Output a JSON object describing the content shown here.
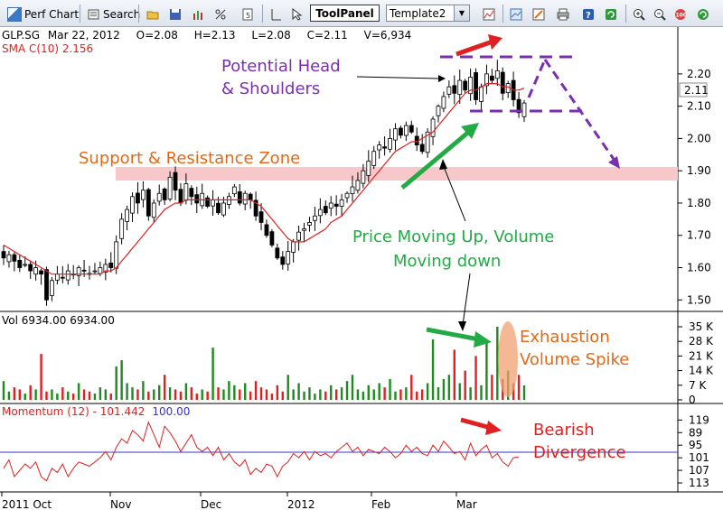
{
  "toolbar": {
    "perf_chart_label": "Perf Chart",
    "search_label": "Search",
    "toolpanel_label": "ToolPanel",
    "template_value": "Template2"
  },
  "header": {
    "symbol": "GLP.SG",
    "date": "Mar 22, 2012",
    "open": "O=2.08",
    "high": "H=2.13",
    "low": "L=2.08",
    "close": "C=2.11",
    "volume": "V=6,934",
    "sma_label": "SMA C(10) 2.156"
  },
  "price_panel": {
    "ticks": [
      "2.20",
      "2.10",
      "2.00",
      "1.90",
      "1.80",
      "1.70",
      "1.60",
      "1.50"
    ],
    "last_price": "2.11",
    "annotations": {
      "head_shoulders_1": "Potential Head",
      "head_shoulders_2": "& Shoulders",
      "support": "Support & Resistance Zone",
      "price_vol_1": "Price Moving Up, Volume",
      "price_vol_2": "Moving down"
    }
  },
  "volume_panel": {
    "label": "Vol  6934.00  6934.00",
    "ticks": [
      "35 K",
      "28 K",
      "21 K",
      "14 K",
      "7 K",
      "0"
    ],
    "annotation_1": "Exhaustion",
    "annotation_2": "Volume Spike"
  },
  "momentum_panel": {
    "label_prefix": "Momentum (12)  -  101.442",
    "label_ref": "100.00",
    "ticks": [
      "113",
      "107",
      "101",
      "95",
      "89",
      "119"
    ],
    "annotation_1": "Bearish",
    "annotation_2": "Divergence"
  },
  "x_axis": [
    "2011 Oct",
    "Nov",
    "Dec",
    "2012",
    "Feb",
    "Mar"
  ],
  "colors": {
    "up": "#1f8a1f",
    "down": "#e02020",
    "candle": "#000000",
    "sma": "#e02020",
    "support_zone": "#f7c7c9",
    "purple": "#7a2fb0",
    "orange": "#e06a1a",
    "green_arrow": "#22aa44",
    "red_arrow": "#e02020",
    "momentum": "#e02020",
    "ref_line": "#3333cc"
  },
  "chart_data": [
    {
      "type": "candlestick",
      "title": "GLP.SG Mar 22, 2012",
      "ylim": [
        1.47,
        2.25
      ],
      "y_ticks": [
        1.5,
        1.6,
        1.7,
        1.8,
        1.9,
        2.0,
        2.1,
        2.2
      ],
      "x_labels": [
        "2011 Oct",
        "Nov",
        "Dec",
        "2012",
        "Feb",
        "Mar"
      ],
      "series": [
        {
          "name": "Close",
          "values": [
            1.63,
            1.64,
            1.62,
            1.6,
            1.61,
            1.59,
            1.6,
            1.58,
            1.5,
            1.56,
            1.58,
            1.57,
            1.59,
            1.58,
            1.6,
            1.59,
            1.58,
            1.59,
            1.6,
            1.61,
            1.6,
            1.68,
            1.75,
            1.78,
            1.82,
            1.8,
            1.84,
            1.76,
            1.8,
            1.83,
            1.81,
            1.88,
            1.84,
            1.8,
            1.86,
            1.82,
            1.8,
            1.83,
            1.79,
            1.81,
            1.77,
            1.8,
            1.82,
            1.85,
            1.8,
            1.83,
            1.81,
            1.76,
            1.74,
            1.7,
            1.67,
            1.63,
            1.61,
            1.65,
            1.68,
            1.71,
            1.72,
            1.74,
            1.76,
            1.78,
            1.77,
            1.8,
            1.79,
            1.81,
            1.83,
            1.85,
            1.87,
            1.9,
            1.93,
            1.96,
            1.98,
            1.97,
            2.0,
            2.03,
            2.01,
            2.04,
            2.02,
            1.98,
            1.96,
            2.02,
            2.06,
            2.1,
            2.13,
            2.16,
            2.14,
            2.18,
            2.15,
            2.19,
            2.12,
            2.16,
            2.2,
            2.18,
            2.21,
            2.14,
            2.17,
            2.12,
            2.08,
            2.11
          ]
        },
        {
          "name": "SMA C(10)",
          "values": [
            1.67,
            1.66,
            1.65,
            1.64,
            1.63,
            1.62,
            1.61,
            1.6,
            1.59,
            1.58,
            1.58,
            1.58,
            1.58,
            1.58,
            1.58,
            1.58,
            1.58,
            1.58,
            1.58,
            1.59,
            1.59,
            1.6,
            1.62,
            1.64,
            1.66,
            1.68,
            1.7,
            1.72,
            1.74,
            1.76,
            1.78,
            1.79,
            1.8,
            1.8,
            1.81,
            1.81,
            1.81,
            1.81,
            1.81,
            1.81,
            1.81,
            1.81,
            1.81,
            1.81,
            1.81,
            1.81,
            1.81,
            1.8,
            1.79,
            1.77,
            1.75,
            1.73,
            1.71,
            1.69,
            1.68,
            1.68,
            1.68,
            1.69,
            1.7,
            1.71,
            1.72,
            1.74,
            1.75,
            1.76,
            1.78,
            1.8,
            1.82,
            1.84,
            1.86,
            1.88,
            1.9,
            1.92,
            1.94,
            1.96,
            1.97,
            1.98,
            1.99,
            1.99,
            2.0,
            2.01,
            2.02,
            2.04,
            2.06,
            2.08,
            2.1,
            2.12,
            2.14,
            2.15,
            2.15,
            2.16,
            2.17,
            2.17,
            2.17,
            2.16,
            2.16,
            2.15,
            2.15,
            2.156
          ]
        }
      ]
    },
    {
      "type": "bar",
      "title": "Vol",
      "ylim": [
        0,
        35000
      ],
      "y_ticks": [
        0,
        7000,
        14000,
        21000,
        28000,
        35000
      ],
      "series": [
        {
          "name": "Volume",
          "values": [
            9000,
            4000,
            6000,
            5000,
            3000,
            7000,
            5000,
            22000,
            4000,
            5000,
            3000,
            6000,
            4000,
            3000,
            8000,
            5000,
            4000,
            3000,
            6000,
            5000,
            3000,
            16000,
            19000,
            8000,
            6000,
            5000,
            9000,
            4000,
            5000,
            7000,
            12000,
            6000,
            5000,
            4000,
            8000,
            6000,
            3000,
            5000,
            4000,
            25000,
            6000,
            5000,
            9000,
            7000,
            5000,
            8000,
            4000,
            9000,
            6000,
            5000,
            3000,
            7000,
            4000,
            12000,
            5000,
            8000,
            4000,
            6000,
            3000,
            5000,
            4000,
            7000,
            5000,
            6000,
            9000,
            12000,
            5000,
            4000,
            7000,
            5000,
            8000,
            6000,
            10000,
            4000,
            5000,
            6000,
            12000,
            4000,
            5000,
            8000,
            29000,
            6000,
            10000,
            12000,
            24000,
            8000,
            14000,
            6000,
            21000,
            7000,
            28000,
            12000,
            36000,
            10000,
            14000,
            8000,
            12000,
            6934
          ]
        }
      ]
    },
    {
      "type": "line",
      "title": "Momentum (12)",
      "ylim": [
        86,
        120
      ],
      "y_ticks": [
        89,
        95,
        101,
        107,
        113,
        119
      ],
      "series": [
        {
          "name": "Momentum (12)",
          "values": [
            96,
            100,
            92,
            95,
            98,
            96,
            99,
            92,
            90,
            96,
            94,
            98,
            92,
            96,
            99,
            98,
            97,
            99,
            101,
            104,
            100,
            106,
            110,
            108,
            114,
            112,
            109,
            118,
            112,
            106,
            116,
            113,
            109,
            104,
            108,
            112,
            106,
            104,
            106,
            102,
            106,
            100,
            103,
            99,
            97,
            100,
            93,
            96,
            94,
            98,
            97,
            92,
            97,
            99,
            103,
            101,
            104,
            100,
            104,
            102,
            103,
            101,
            104,
            106,
            108,
            104,
            106,
            102,
            105,
            104,
            103,
            106,
            104,
            101,
            103,
            107,
            104,
            106,
            103,
            102,
            107,
            104,
            109,
            106,
            103,
            104,
            100,
            108,
            102,
            105,
            107,
            101,
            103,
            99,
            97,
            101,
            101.442
          ]
        },
        {
          "name": "Reference",
          "values": [
            100
          ]
        }
      ]
    }
  ]
}
